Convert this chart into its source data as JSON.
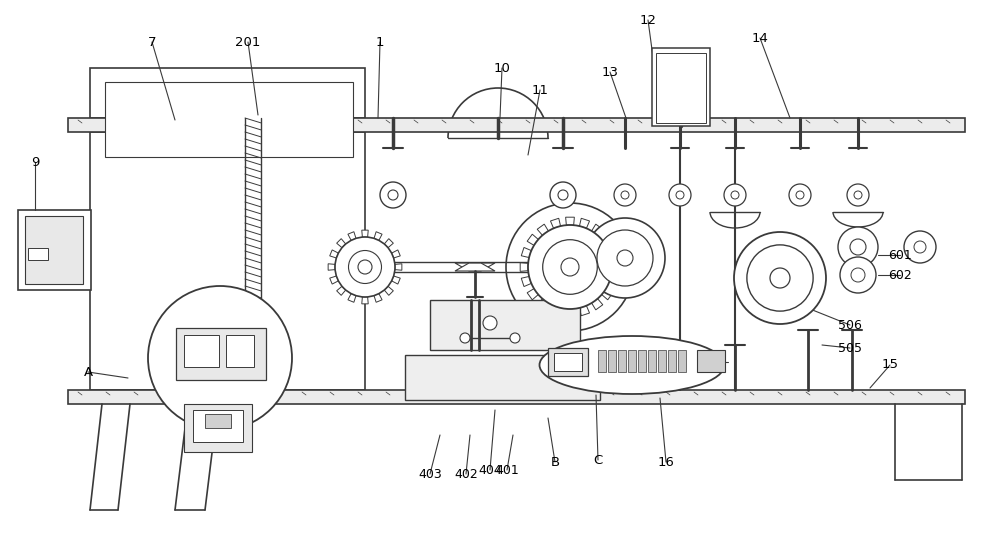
{
  "bg_color": "#ffffff",
  "line_color": "#3a3a3a",
  "figsize": [
    10.0,
    5.43
  ],
  "dpi": 100,
  "label_data": [
    [
      "7",
      152,
      42,
      175,
      120,
      true
    ],
    [
      "201",
      248,
      42,
      258,
      115,
      true
    ],
    [
      "1",
      380,
      42,
      378,
      118,
      true
    ],
    [
      "10",
      502,
      68,
      500,
      118,
      true
    ],
    [
      "11",
      540,
      90,
      528,
      155,
      true
    ],
    [
      "12",
      648,
      20,
      655,
      72,
      true
    ],
    [
      "13",
      610,
      72,
      626,
      118,
      true
    ],
    [
      "14",
      760,
      38,
      790,
      118,
      true
    ],
    [
      "15",
      890,
      365,
      870,
      388,
      true
    ],
    [
      "16",
      666,
      462,
      660,
      398,
      true
    ],
    [
      "9",
      35,
      162,
      35,
      210,
      true
    ],
    [
      "401",
      507,
      470,
      513,
      435,
      true
    ],
    [
      "402",
      466,
      474,
      470,
      435,
      true
    ],
    [
      "403",
      430,
      474,
      440,
      435,
      true
    ],
    [
      "404",
      490,
      470,
      495,
      410,
      true
    ],
    [
      "505",
      850,
      348,
      822,
      345,
      true
    ],
    [
      "506",
      850,
      325,
      800,
      305,
      true
    ],
    [
      "601",
      900,
      255,
      878,
      255,
      true
    ],
    [
      "602",
      900,
      275,
      878,
      275,
      true
    ],
    [
      "A",
      88,
      372,
      128,
      378,
      true
    ],
    [
      "B",
      555,
      462,
      548,
      418,
      true
    ],
    [
      "C",
      598,
      460,
      596,
      395,
      true
    ]
  ]
}
